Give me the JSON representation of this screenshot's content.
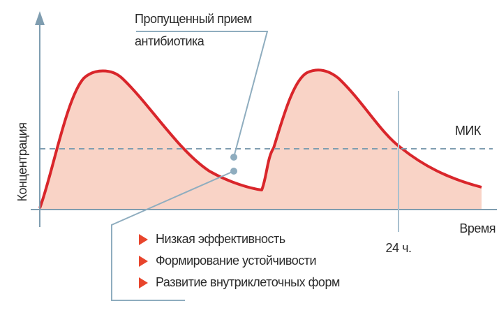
{
  "callout": {
    "lines": [
      "Пропущенный прием",
      "антибиотика"
    ]
  },
  "axes": {
    "y_label": "Концентрация",
    "x_label": "Время"
  },
  "mic_label": "МИК",
  "time_label": "24 ч.",
  "effects": [
    "Низкая эффективность",
    "Формирование устойчивости",
    "Развитие внутриклеточных форм"
  ]
}
